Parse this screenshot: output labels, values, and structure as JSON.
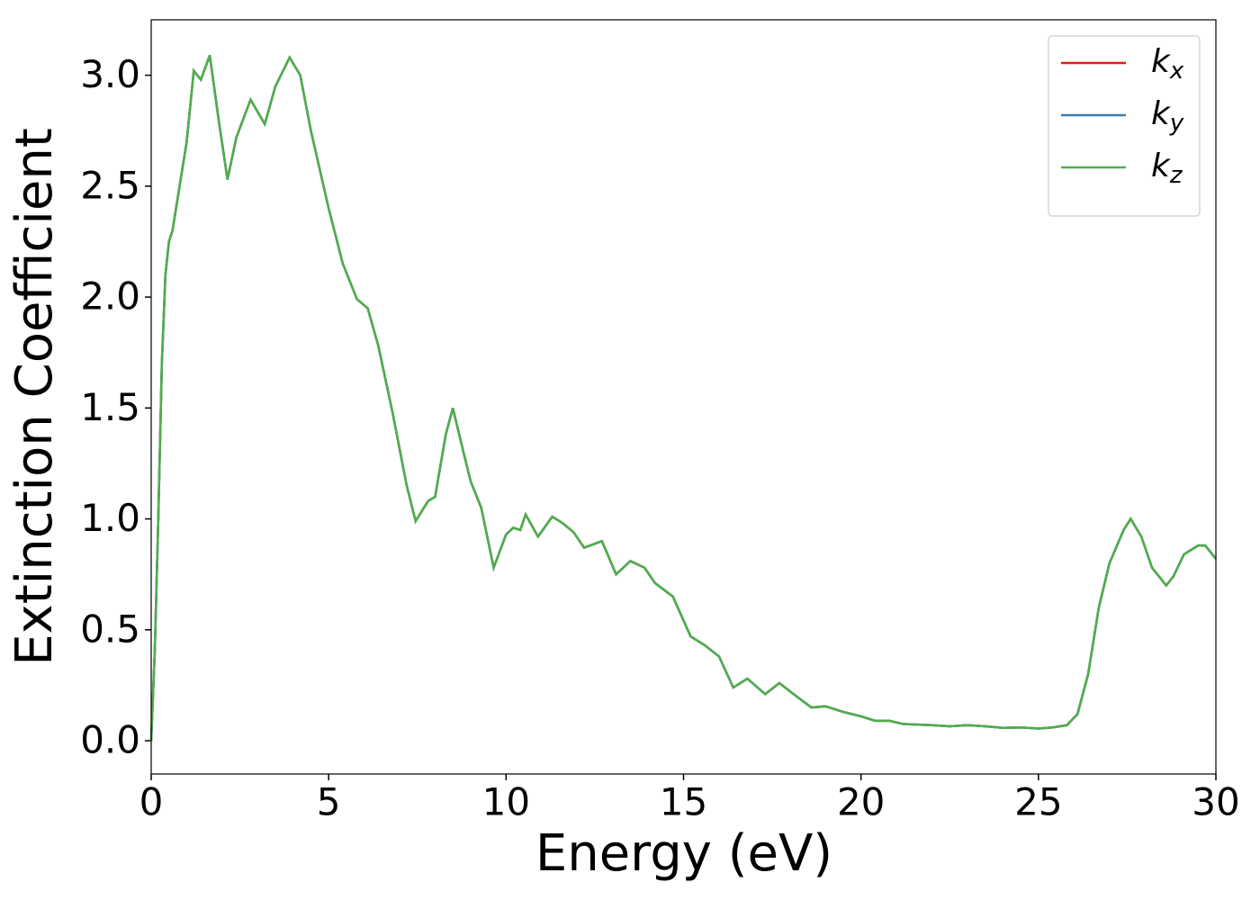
{
  "chart_data": {
    "type": "line",
    "xlabel": "Energy (eV)",
    "ylabel": "Extinction Coefficient",
    "x": [
      0,
      0.1,
      0.2,
      0.3,
      0.4,
      0.5,
      0.6,
      0.8,
      1.0,
      1.2,
      1.4,
      1.65,
      1.9,
      2.15,
      2.4,
      2.8,
      3.2,
      3.5,
      3.9,
      4.2,
      4.5,
      5.0,
      5.4,
      5.8,
      6.1,
      6.4,
      6.8,
      7.2,
      7.45,
      7.8,
      8.0,
      8.3,
      8.5,
      8.8,
      9.0,
      9.3,
      9.65,
      10.0,
      10.2,
      10.4,
      10.55,
      10.9,
      11.3,
      11.6,
      11.9,
      12.2,
      12.7,
      13.1,
      13.5,
      13.9,
      14.2,
      14.7,
      15.2,
      15.6,
      16.0,
      16.4,
      16.8,
      17.3,
      17.7,
      18.1,
      18.6,
      19.0,
      19.5,
      20.0,
      20.4,
      20.8,
      21.2,
      22.0,
      22.5,
      23.0,
      23.5,
      24.0,
      24.5,
      25.0,
      25.4,
      25.8,
      26.1,
      26.4,
      26.7,
      27.0,
      27.4,
      27.6,
      27.9,
      28.2,
      28.6,
      28.8,
      29.1,
      29.5,
      29.7,
      30.0
    ],
    "series": [
      {
        "name": "kx",
        "color": "#e41a1c",
        "values": [
          0.0,
          0.4,
          1.0,
          1.7,
          2.1,
          2.25,
          2.3,
          2.5,
          2.7,
          3.02,
          2.98,
          3.09,
          2.8,
          2.53,
          2.72,
          2.89,
          2.78,
          2.95,
          3.08,
          3.0,
          2.75,
          2.4,
          2.15,
          1.99,
          1.95,
          1.78,
          1.48,
          1.15,
          0.99,
          1.08,
          1.1,
          1.38,
          1.5,
          1.3,
          1.17,
          1.05,
          0.78,
          0.93,
          0.96,
          0.95,
          1.02,
          0.92,
          1.01,
          0.98,
          0.94,
          0.87,
          0.9,
          0.75,
          0.81,
          0.78,
          0.71,
          0.65,
          0.47,
          0.43,
          0.38,
          0.24,
          0.28,
          0.21,
          0.26,
          0.21,
          0.15,
          0.155,
          0.13,
          0.11,
          0.09,
          0.09,
          0.075,
          0.07,
          0.065,
          0.07,
          0.065,
          0.058,
          0.06,
          0.055,
          0.06,
          0.07,
          0.12,
          0.3,
          0.6,
          0.8,
          0.95,
          1.0,
          0.92,
          0.78,
          0.7,
          0.74,
          0.84,
          0.88,
          0.88,
          0.82
        ]
      },
      {
        "name": "ky",
        "color": "#377eb8",
        "values": [
          0.0,
          0.4,
          1.0,
          1.7,
          2.1,
          2.25,
          2.3,
          2.5,
          2.7,
          3.02,
          2.98,
          3.09,
          2.8,
          2.53,
          2.72,
          2.89,
          2.78,
          2.95,
          3.08,
          3.0,
          2.75,
          2.4,
          2.15,
          1.99,
          1.95,
          1.78,
          1.48,
          1.15,
          0.99,
          1.08,
          1.1,
          1.38,
          1.5,
          1.3,
          1.17,
          1.05,
          0.78,
          0.93,
          0.96,
          0.95,
          1.02,
          0.92,
          1.01,
          0.98,
          0.94,
          0.87,
          0.9,
          0.75,
          0.81,
          0.78,
          0.71,
          0.65,
          0.47,
          0.43,
          0.38,
          0.24,
          0.28,
          0.21,
          0.26,
          0.21,
          0.15,
          0.155,
          0.13,
          0.11,
          0.09,
          0.09,
          0.075,
          0.07,
          0.065,
          0.07,
          0.065,
          0.058,
          0.06,
          0.055,
          0.06,
          0.07,
          0.12,
          0.3,
          0.6,
          0.8,
          0.95,
          1.0,
          0.92,
          0.78,
          0.7,
          0.74,
          0.84,
          0.88,
          0.88,
          0.82
        ]
      },
      {
        "name": "kz",
        "color": "#4daf4a",
        "values": [
          0.0,
          0.4,
          1.0,
          1.7,
          2.1,
          2.25,
          2.3,
          2.5,
          2.7,
          3.02,
          2.98,
          3.09,
          2.8,
          2.53,
          2.72,
          2.89,
          2.78,
          2.95,
          3.08,
          3.0,
          2.75,
          2.4,
          2.15,
          1.99,
          1.95,
          1.78,
          1.48,
          1.15,
          0.99,
          1.08,
          1.1,
          1.38,
          1.5,
          1.3,
          1.17,
          1.05,
          0.78,
          0.93,
          0.96,
          0.95,
          1.02,
          0.92,
          1.01,
          0.98,
          0.94,
          0.87,
          0.9,
          0.75,
          0.81,
          0.78,
          0.71,
          0.65,
          0.47,
          0.43,
          0.38,
          0.24,
          0.28,
          0.21,
          0.26,
          0.21,
          0.15,
          0.155,
          0.13,
          0.11,
          0.09,
          0.09,
          0.075,
          0.07,
          0.065,
          0.07,
          0.065,
          0.058,
          0.06,
          0.055,
          0.06,
          0.07,
          0.12,
          0.3,
          0.6,
          0.8,
          0.95,
          1.0,
          0.92,
          0.78,
          0.7,
          0.74,
          0.84,
          0.88,
          0.88,
          0.82
        ]
      }
    ],
    "xlim": [
      0,
      30
    ],
    "xticks": [
      0,
      5,
      10,
      15,
      20,
      25,
      30
    ],
    "ylim": [
      -0.15,
      3.25
    ],
    "yticks": [
      {
        "value": 0,
        "label": "0.0"
      },
      0.5,
      {
        "value": 1,
        "label": "1.0"
      },
      1.5,
      {
        "value": 2,
        "label": "2.0"
      },
      2.5,
      {
        "value": 3,
        "label": "3.0"
      }
    ],
    "grid": false,
    "legend": "upper right"
  }
}
